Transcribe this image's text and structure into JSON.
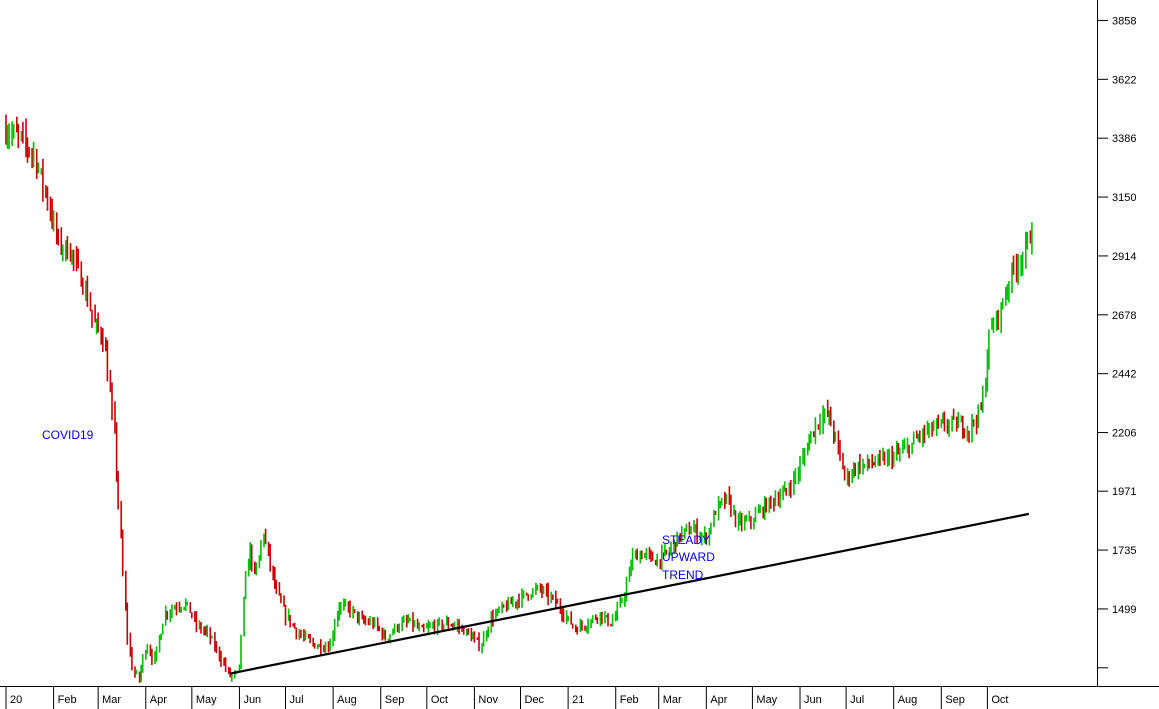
{
  "chart_data": {
    "type": "candlestick",
    "title": "",
    "xlabel": "",
    "ylabel": "",
    "ylim": [
      1190,
      3940
    ],
    "y_ticks": [
      {
        "value": 3858,
        "label": "3858"
      },
      {
        "value": 3622,
        "label": "3622"
      },
      {
        "value": 3386,
        "label": "3386"
      },
      {
        "value": 3150,
        "label": "3150"
      },
      {
        "value": 2914,
        "label": "2914"
      },
      {
        "value": 2678,
        "label": "2678"
      },
      {
        "value": 2442,
        "label": "2442"
      },
      {
        "value": 2206,
        "label": "2206"
      },
      {
        "value": 1971,
        "label": "1971"
      },
      {
        "value": 1735,
        "label": "1735"
      },
      {
        "value": 1499,
        "label": "1499"
      },
      {
        "value": 1263,
        "label": ""
      }
    ],
    "x_ticks": [
      "20",
      "Feb",
      "Mar",
      "Apr",
      "May",
      "Jun",
      "Jul",
      "Aug",
      "Sep",
      "Oct",
      "Nov",
      "Dec",
      "21",
      "Feb",
      "Mar",
      "Apr",
      "May",
      "Jun",
      "Jul",
      "Aug",
      "Sep",
      "Oct"
    ],
    "x_range": [
      "2020-01",
      "2021-10"
    ],
    "up_color": "#00c000",
    "down_color": "#cc0000",
    "series": [
      {
        "values": [
          [
            "2020-01-01",
            3420
          ],
          [
            "2020-01-10",
            3390
          ],
          [
            "2020-01-20",
            3320
          ],
          [
            "2020-01-28",
            3150
          ],
          [
            "2020-02-05",
            2960
          ],
          [
            "2020-02-13",
            2930
          ],
          [
            "2020-02-21",
            2800
          ],
          [
            "2020-02-28",
            2640
          ],
          [
            "2020-03-05",
            2590
          ],
          [
            "2020-03-12",
            2200
          ],
          [
            "2020-03-17",
            1720
          ],
          [
            "2020-03-20",
            1420
          ],
          [
            "2020-03-24",
            1250
          ],
          [
            "2020-03-28",
            1220
          ],
          [
            "2020-04-02",
            1360
          ],
          [
            "2020-04-07",
            1290
          ],
          [
            "2020-04-14",
            1480
          ],
          [
            "2020-04-21",
            1510
          ],
          [
            "2020-04-28",
            1520
          ],
          [
            "2020-05-05",
            1430
          ],
          [
            "2020-05-12",
            1400
          ],
          [
            "2020-05-19",
            1320
          ],
          [
            "2020-05-26",
            1230
          ],
          [
            "2020-06-01",
            1240
          ],
          [
            "2020-06-04",
            1520
          ],
          [
            "2020-06-08",
            1750
          ],
          [
            "2020-06-12",
            1620
          ],
          [
            "2020-06-17",
            1810
          ],
          [
            "2020-06-24",
            1600
          ],
          [
            "2020-07-01",
            1480
          ],
          [
            "2020-07-10",
            1400
          ],
          [
            "2020-07-20",
            1355
          ],
          [
            "2020-07-30",
            1345
          ],
          [
            "2020-08-05",
            1510
          ],
          [
            "2020-08-12",
            1500
          ],
          [
            "2020-08-20",
            1450
          ],
          [
            "2020-08-28",
            1440
          ],
          [
            "2020-09-05",
            1380
          ],
          [
            "2020-09-12",
            1430
          ],
          [
            "2020-09-20",
            1450
          ],
          [
            "2020-09-28",
            1410
          ],
          [
            "2020-10-06",
            1430
          ],
          [
            "2020-10-14",
            1440
          ],
          [
            "2020-10-22",
            1430
          ],
          [
            "2020-10-30",
            1390
          ],
          [
            "2020-11-06",
            1350
          ],
          [
            "2020-11-12",
            1460
          ],
          [
            "2020-11-20",
            1500
          ],
          [
            "2020-11-28",
            1530
          ],
          [
            "2020-12-06",
            1560
          ],
          [
            "2020-12-14",
            1580
          ],
          [
            "2020-12-22",
            1540
          ],
          [
            "2020-12-30",
            1480
          ],
          [
            "2021-01-06",
            1420
          ],
          [
            "2021-01-14",
            1440
          ],
          [
            "2021-01-22",
            1480
          ],
          [
            "2021-01-30",
            1440
          ],
          [
            "2021-02-06",
            1540
          ],
          [
            "2021-02-13",
            1710
          ],
          [
            "2021-02-20",
            1720
          ],
          [
            "2021-02-28",
            1690
          ],
          [
            "2021-03-08",
            1730
          ],
          [
            "2021-03-16",
            1800
          ],
          [
            "2021-03-24",
            1820
          ],
          [
            "2021-04-01",
            1780
          ],
          [
            "2021-04-08",
            1900
          ],
          [
            "2021-04-15",
            1940
          ],
          [
            "2021-04-22",
            1840
          ],
          [
            "2021-04-30",
            1850
          ],
          [
            "2021-05-08",
            1900
          ],
          [
            "2021-05-16",
            1940
          ],
          [
            "2021-05-24",
            1970
          ],
          [
            "2021-06-01",
            2060
          ],
          [
            "2021-06-08",
            2190
          ],
          [
            "2021-06-15",
            2270
          ],
          [
            "2021-06-20",
            2280
          ],
          [
            "2021-06-26",
            2150
          ],
          [
            "2021-07-01",
            2020
          ],
          [
            "2021-07-08",
            2070
          ],
          [
            "2021-07-16",
            2080
          ],
          [
            "2021-07-24",
            2090
          ],
          [
            "2021-08-01",
            2110
          ],
          [
            "2021-08-10",
            2140
          ],
          [
            "2021-08-18",
            2190
          ],
          [
            "2021-08-26",
            2220
          ],
          [
            "2021-09-04",
            2240
          ],
          [
            "2021-09-12",
            2240
          ],
          [
            "2021-09-20",
            2220
          ],
          [
            "2021-09-28",
            2310
          ],
          [
            "2021-10-03",
            2600
          ],
          [
            "2021-10-10",
            2700
          ],
          [
            "2021-10-18",
            2860
          ],
          [
            "2021-10-26",
            2930
          ],
          [
            "2021-10-31",
            3040
          ]
        ]
      }
    ],
    "trendline": [
      [
        "2020-05-26",
        1240
      ],
      [
        "2021-10-28",
        1880
      ]
    ],
    "annotations": [
      {
        "text": "COVID19",
        "color": "#0000ee"
      },
      {
        "text": "STEADY",
        "color": "#0000ee"
      },
      {
        "text": "UPWARD",
        "color": "#0000ee"
      },
      {
        "text": "TREND",
        "color": "#0000ee"
      }
    ]
  }
}
